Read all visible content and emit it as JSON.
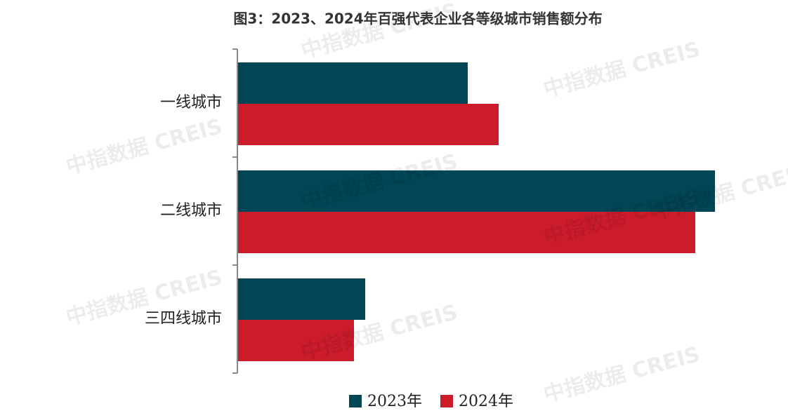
{
  "chart_data": {
    "type": "barh",
    "title": "图3：2023、2024年百强代表企业各等级城市销售额分布",
    "categories": [
      "一线城市",
      "二线城市",
      "三四线城市"
    ],
    "series": [
      {
        "name": "2023年",
        "color": "#004655",
        "values": [
          328,
          680,
          182
        ]
      },
      {
        "name": "2024年",
        "color": "#cc1c2c",
        "values": [
          372,
          652,
          166
        ]
      }
    ],
    "xlim": [
      0,
      680
    ],
    "legend": "bottom",
    "watermark": "中指数据 CREIS"
  }
}
